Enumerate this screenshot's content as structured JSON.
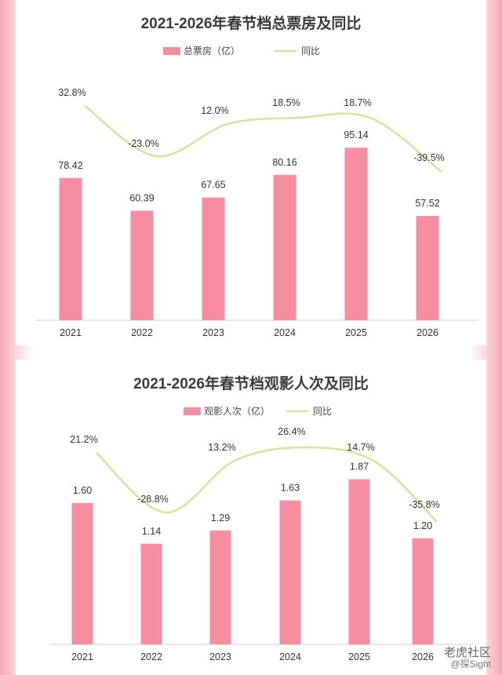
{
  "chart_data": [
    {
      "type": "bar",
      "title": "2021-2026年春节档总票房及同比",
      "categories": [
        "2021",
        "2022",
        "2023",
        "2024",
        "2025",
        "2026"
      ],
      "series": [
        {
          "name": "总票房（亿）",
          "type": "bar",
          "values": [
            78.42,
            60.39,
            67.65,
            80.16,
            95.14,
            57.52
          ]
        },
        {
          "name": "同比",
          "type": "line",
          "values": [
            "32.8%",
            "-23.0%",
            "12.0%",
            "18.5%",
            "18.7%",
            "-39.5%"
          ]
        }
      ],
      "legend": "top-center",
      "grid": false,
      "colors": {
        "bar": "#f78e9f",
        "line": "#d7e39a"
      }
    },
    {
      "type": "bar",
      "title": "2021-2026年春节档观影人次及同比",
      "categories": [
        "2021",
        "2022",
        "2023",
        "2024",
        "2025",
        "2026"
      ],
      "series": [
        {
          "name": "观影人次（亿）",
          "type": "bar",
          "values": [
            1.6,
            1.14,
            1.29,
            1.63,
            1.87,
            1.2
          ]
        },
        {
          "name": "同比",
          "type": "line",
          "values": [
            "21.2%",
            "-28.8%",
            "13.2%",
            "26.4%",
            "14.7%",
            "-35.8%"
          ]
        }
      ],
      "legend": "top-center",
      "grid": false,
      "colors": {
        "bar": "#f78e9f",
        "line": "#d7e39a"
      }
    }
  ],
  "watermark": {
    "line1": "老虎社区",
    "line2": "@探Sight"
  }
}
